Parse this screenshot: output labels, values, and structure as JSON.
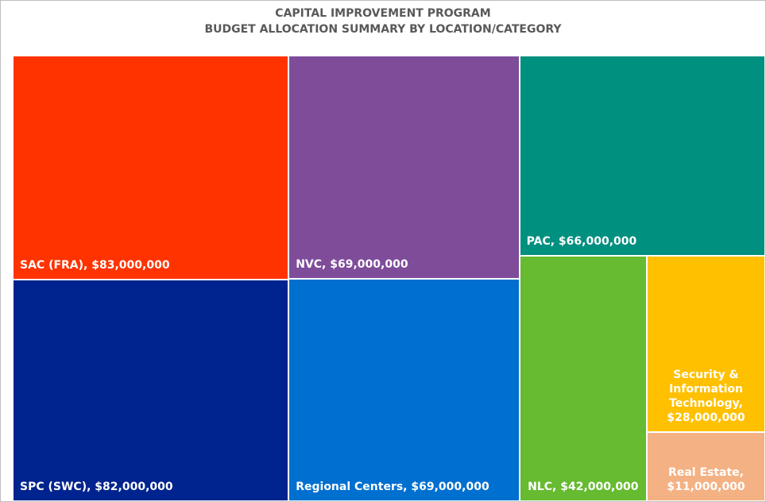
{
  "chart_data": {
    "type": "treemap",
    "title": "CAPITAL IMPROVEMENT PROGRAM",
    "subtitle": "BUDGET ALLOCATION SUMMARY BY LOCATION/CATEGORY",
    "categories": [
      "SAC (FRA),",
      "SPC (SWC),",
      "NVC,",
      "Regional Centers,",
      "PAC,",
      "NLC,",
      "Security & Information Technology,",
      "Real Estate,"
    ],
    "values": [
      83000000,
      82000000,
      69000000,
      69000000,
      66000000,
      42000000,
      28000000,
      11000000
    ],
    "value_labels": [
      "$83,000,000",
      "$82,000,000",
      "$69,000,000",
      "$69,000,000",
      "$66,000,000",
      "$42,000,000",
      "$28,000,000",
      "$11,000,000"
    ],
    "colors": [
      "#ff3300",
      "#00248f",
      "#7f4c9a",
      "#0070d0",
      "#009080",
      "#66bb30",
      "#ffc000",
      "#f4b183"
    ]
  }
}
